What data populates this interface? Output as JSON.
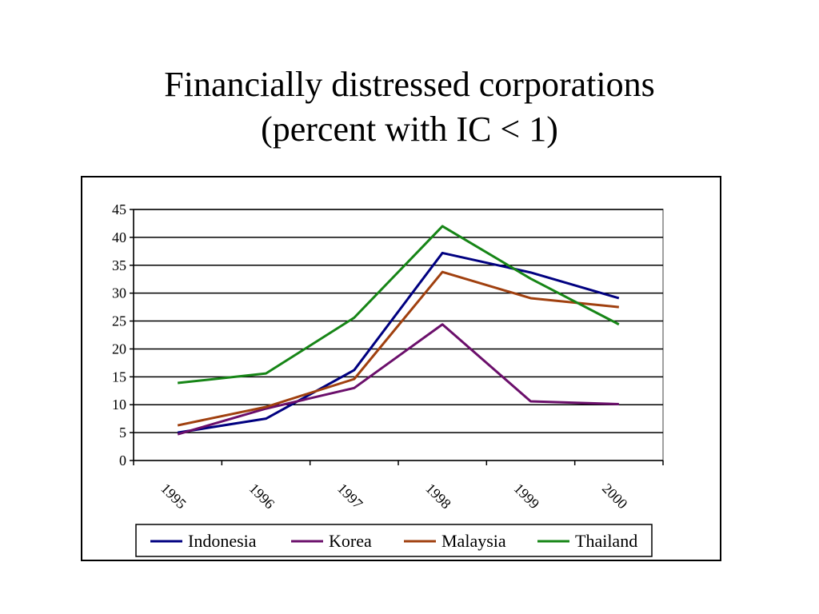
{
  "slide": {
    "title_line1": "Financially distressed corporations",
    "title_line2": "(percent with IC < 1)"
  },
  "chart_data": {
    "type": "line",
    "title": "Financially distressed corporations (percent with IC < 1)",
    "categories": [
      "1995",
      "1996",
      "1997",
      "1998",
      "1999",
      "2000"
    ],
    "ylim": [
      0,
      45
    ],
    "yticks": [
      "0",
      "5",
      "10",
      "15",
      "20",
      "25",
      "30",
      "35",
      "40",
      "45"
    ],
    "grid": true,
    "legend_position": "bottom",
    "series": [
      {
        "name": "Indonesia",
        "color": "#000080",
        "values": [
          5.0,
          7.5,
          16.2,
          37.2,
          33.7,
          29.1
        ]
      },
      {
        "name": "Korea",
        "color": "#6B0F6B",
        "values": [
          4.7,
          9.3,
          13.0,
          24.4,
          10.6,
          10.1
        ]
      },
      {
        "name": "Malaysia",
        "color": "#A0400F",
        "values": [
          6.3,
          9.6,
          14.6,
          33.8,
          29.1,
          27.5
        ]
      },
      {
        "name": "Thailand",
        "color": "#168516",
        "values": [
          13.9,
          15.6,
          25.6,
          42.0,
          32.6,
          24.4
        ]
      }
    ]
  }
}
